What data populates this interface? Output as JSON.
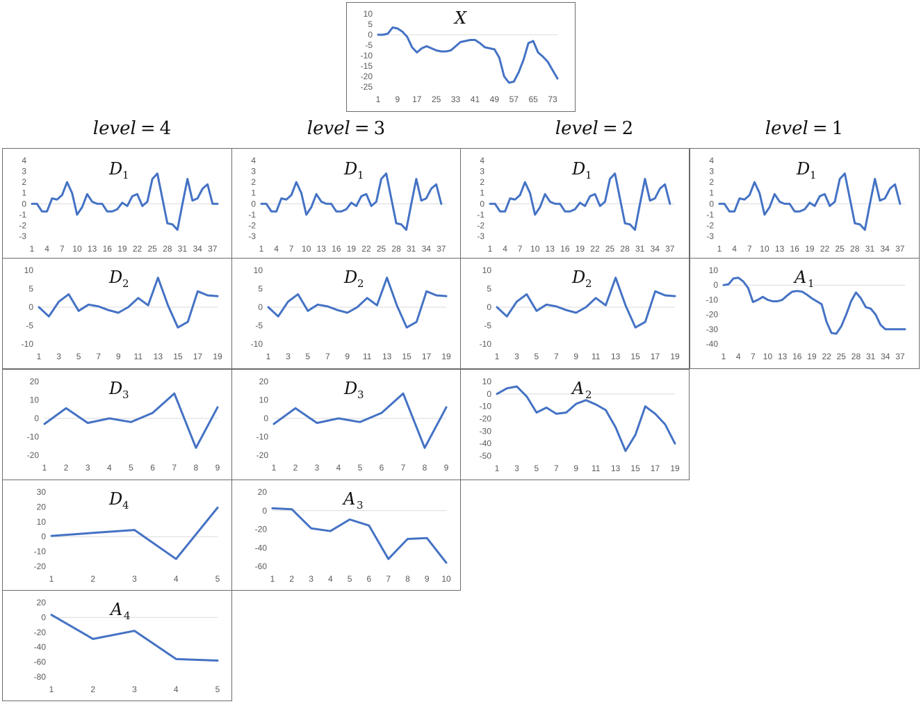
{
  "level_labels": [
    {
      "var": "level",
      "eq": "=",
      "num": "4"
    },
    {
      "var": "level",
      "eq": "=",
      "num": "3"
    },
    {
      "var": "level",
      "eq": "=",
      "num": "2"
    },
    {
      "var": "level",
      "eq": "=",
      "num": "1"
    }
  ],
  "colors": {
    "line": "#4472C4",
    "axis": "#D9D9D9",
    "tick": "#595959",
    "border": "#6b6b6b"
  },
  "chart_data": [
    {
      "id": "x",
      "type": "line",
      "title": "X",
      "subscript": "",
      "ylim": [
        -25,
        10
      ],
      "yticks": [
        10,
        5,
        0,
        -5,
        -10,
        -15,
        -20,
        -25
      ],
      "xticks": [
        1,
        9,
        17,
        25,
        33,
        41,
        49,
        57,
        65,
        73
      ],
      "xmax": 75,
      "x": [
        1,
        3,
        5,
        7,
        9,
        11,
        13,
        15,
        17,
        19,
        21,
        23,
        25,
        27,
        29,
        31,
        33,
        35,
        37,
        39,
        41,
        43,
        45,
        47,
        49,
        51,
        53,
        55,
        57,
        59,
        61,
        63,
        65,
        67,
        69,
        71,
        73,
        75
      ],
      "values": [
        0,
        0,
        0.5,
        3.5,
        3,
        1.5,
        -1,
        -6,
        -8.5,
        -6.5,
        -5.5,
        -6.5,
        -7.5,
        -8,
        -8,
        -7.5,
        -5.5,
        -3.5,
        -3,
        -2.5,
        -2.5,
        -4,
        -6,
        -6.5,
        -7,
        -11,
        -20,
        -23,
        -22.5,
        -18,
        -12,
        -4,
        -3,
        -8.5,
        -10.5,
        -13,
        -17,
        -21
      ]
    },
    {
      "id": "d1-l4",
      "type": "line",
      "title": "D",
      "subscript": "1",
      "ylim": [
        -3,
        4
      ],
      "yticks": [
        4,
        3,
        2,
        1,
        0,
        -1,
        -2,
        -3
      ],
      "xticks": [
        1,
        4,
        7,
        10,
        13,
        16,
        19,
        22,
        25,
        28,
        31,
        34,
        37
      ],
      "xmax": 38,
      "x": [
        1,
        2,
        3,
        4,
        5,
        6,
        7,
        8,
        9,
        10,
        11,
        12,
        13,
        14,
        15,
        16,
        17,
        18,
        19,
        20,
        21,
        22,
        23,
        24,
        25,
        26,
        27,
        28,
        29,
        30,
        31,
        32,
        33,
        34,
        35,
        36,
        37,
        38
      ],
      "values": [
        0,
        0,
        -0.7,
        -0.7,
        0.5,
        0.4,
        0.8,
        2,
        1,
        -1,
        -0.3,
        0.9,
        0.2,
        0,
        0,
        -0.7,
        -0.7,
        -0.5,
        0.1,
        -0.2,
        0.7,
        0.9,
        -0.2,
        0.2,
        2.3,
        2.8,
        0.5,
        -1.8,
        -1.9,
        -2.4,
        0,
        2.3,
        0.3,
        0.5,
        1.4,
        1.8,
        0,
        0
      ]
    },
    {
      "id": "d1-l3",
      "type": "line",
      "title": "D",
      "subscript": "1",
      "ylim": [
        -3,
        4
      ],
      "yticks": [
        4,
        3,
        2,
        1,
        0,
        -1,
        -2,
        -3
      ],
      "xticks": [
        1,
        4,
        7,
        10,
        13,
        16,
        19,
        22,
        25,
        28,
        31,
        34,
        37
      ],
      "xmax": 38,
      "x": [
        1,
        2,
        3,
        4,
        5,
        6,
        7,
        8,
        9,
        10,
        11,
        12,
        13,
        14,
        15,
        16,
        17,
        18,
        19,
        20,
        21,
        22,
        23,
        24,
        25,
        26,
        27,
        28,
        29,
        30,
        31,
        32,
        33,
        34,
        35,
        36,
        37
      ],
      "values": [
        0,
        0,
        -0.7,
        -0.7,
        0.5,
        0.4,
        0.8,
        2,
        1,
        -1,
        -0.3,
        0.9,
        0.2,
        0,
        0,
        -0.7,
        -0.7,
        -0.5,
        0.1,
        -0.2,
        0.7,
        0.9,
        -0.2,
        0.2,
        2.3,
        2.8,
        0.5,
        -1.8,
        -1.9,
        -2.4,
        0,
        2.3,
        0.3,
        0.5,
        1.4,
        1.8,
        0
      ]
    },
    {
      "id": "d1-l2",
      "type": "line",
      "title": "D",
      "subscript": "1",
      "ylim": [
        -3,
        4
      ],
      "yticks": [
        4,
        3,
        2,
        1,
        0,
        -1,
        -2,
        -3
      ],
      "xticks": [
        1,
        4,
        7,
        10,
        13,
        16,
        19,
        22,
        25,
        28,
        31,
        34,
        37
      ],
      "xmax": 38,
      "x": [
        1,
        2,
        3,
        4,
        5,
        6,
        7,
        8,
        9,
        10,
        11,
        12,
        13,
        14,
        15,
        16,
        17,
        18,
        19,
        20,
        21,
        22,
        23,
        24,
        25,
        26,
        27,
        28,
        29,
        30,
        31,
        32,
        33,
        34,
        35,
        36,
        37
      ],
      "values": [
        0,
        0,
        -0.7,
        -0.7,
        0.5,
        0.4,
        0.8,
        2,
        1,
        -1,
        -0.3,
        0.9,
        0.2,
        0,
        0,
        -0.7,
        -0.7,
        -0.5,
        0.1,
        -0.2,
        0.7,
        0.9,
        -0.2,
        0.2,
        2.3,
        2.8,
        0.5,
        -1.8,
        -1.9,
        -2.4,
        0,
        2.3,
        0.3,
        0.5,
        1.4,
        1.8,
        0
      ]
    },
    {
      "id": "d1-l1",
      "type": "line",
      "title": "D",
      "subscript": "1",
      "ylim": [
        -3,
        4
      ],
      "yticks": [
        4,
        3,
        2,
        1,
        0,
        -1,
        -2,
        -3
      ],
      "xticks": [
        1,
        4,
        7,
        10,
        13,
        16,
        19,
        22,
        25,
        28,
        31,
        34,
        37
      ],
      "xmax": 38,
      "x": [
        1,
        2,
        3,
        4,
        5,
        6,
        7,
        8,
        9,
        10,
        11,
        12,
        13,
        14,
        15,
        16,
        17,
        18,
        19,
        20,
        21,
        22,
        23,
        24,
        25,
        26,
        27,
        28,
        29,
        30,
        31,
        32,
        33,
        34,
        35,
        36,
        37
      ],
      "values": [
        0,
        0,
        -0.7,
        -0.7,
        0.5,
        0.4,
        0.8,
        2,
        1,
        -1,
        -0.3,
        0.9,
        0.2,
        0,
        0,
        -0.7,
        -0.7,
        -0.5,
        0.1,
        -0.2,
        0.7,
        0.9,
        -0.2,
        0.2,
        2.3,
        2.8,
        0.5,
        -1.8,
        -1.9,
        -2.4,
        0,
        2.3,
        0.3,
        0.5,
        1.4,
        1.8,
        0
      ]
    },
    {
      "id": "d2-l4",
      "type": "line",
      "title": "D",
      "subscript": "2",
      "ylim": [
        -10,
        10
      ],
      "yticks": [
        10,
        5,
        0,
        -5,
        -10
      ],
      "xticks": [
        1,
        3,
        5,
        7,
        9,
        11,
        13,
        15,
        17,
        19
      ],
      "xmax": 19,
      "x": [
        1,
        2,
        3,
        4,
        5,
        6,
        7,
        8,
        9,
        10,
        11,
        12,
        13,
        14,
        15,
        16,
        17,
        18,
        19
      ],
      "values": [
        0,
        -2.5,
        1.5,
        3.5,
        -1,
        0.7,
        0.2,
        -0.8,
        -1.5,
        0,
        2.5,
        0.5,
        8,
        0.5,
        -5.5,
        -4,
        4.3,
        3.2,
        3
      ]
    },
    {
      "id": "d2-l3",
      "type": "line",
      "title": "D",
      "subscript": "2",
      "ylim": [
        -10,
        10
      ],
      "yticks": [
        10,
        5,
        0,
        -5,
        -10
      ],
      "xticks": [
        1,
        3,
        5,
        7,
        9,
        11,
        13,
        15,
        17,
        19
      ],
      "xmax": 19,
      "x": [
        1,
        2,
        3,
        4,
        5,
        6,
        7,
        8,
        9,
        10,
        11,
        12,
        13,
        14,
        15,
        16,
        17,
        18,
        19
      ],
      "values": [
        0,
        -2.5,
        1.5,
        3.5,
        -1,
        0.7,
        0.2,
        -0.8,
        -1.5,
        0,
        2.5,
        0.5,
        8,
        0.5,
        -5.5,
        -4,
        4.3,
        3.2,
        3
      ]
    },
    {
      "id": "d2-l2",
      "type": "line",
      "title": "D",
      "subscript": "2",
      "ylim": [
        -10,
        10
      ],
      "yticks": [
        10,
        5,
        0,
        -5,
        -10
      ],
      "xticks": [
        1,
        3,
        5,
        7,
        9,
        11,
        13,
        15,
        17,
        19
      ],
      "xmax": 19,
      "x": [
        1,
        2,
        3,
        4,
        5,
        6,
        7,
        8,
        9,
        10,
        11,
        12,
        13,
        14,
        15,
        16,
        17,
        18,
        19
      ],
      "values": [
        0,
        -2.5,
        1.5,
        3.5,
        -1,
        0.7,
        0.2,
        -0.8,
        -1.5,
        0,
        2.5,
        0.5,
        8,
        0.5,
        -5.5,
        -4,
        4.3,
        3.2,
        3
      ]
    },
    {
      "id": "a1-l1",
      "type": "line",
      "title": "A",
      "subscript": "1",
      "ylim": [
        -40,
        10
      ],
      "yticks": [
        10,
        0,
        -10,
        -20,
        -30,
        -40
      ],
      "xticks": [
        1,
        4,
        7,
        10,
        13,
        16,
        19,
        22,
        25,
        28,
        31,
        34,
        37
      ],
      "xmax": 38,
      "x": [
        1,
        2,
        3,
        4,
        5,
        6,
        7,
        8,
        9,
        10,
        11,
        12,
        13,
        14,
        15,
        16,
        17,
        18,
        19,
        20,
        21,
        22,
        23,
        24,
        25,
        26,
        27,
        28,
        29,
        30,
        31,
        32,
        33,
        34,
        35,
        36,
        37,
        38
      ],
      "values": [
        0,
        0.5,
        4.5,
        5,
        2.5,
        -2,
        -11.5,
        -10,
        -8,
        -10,
        -11,
        -11,
        -10,
        -7,
        -4.5,
        -4,
        -4.5,
        -6.5,
        -9,
        -11,
        -13,
        -25,
        -32.5,
        -33,
        -28,
        -20,
        -11,
        -5,
        -9,
        -15,
        -16,
        -20,
        -27,
        -30,
        -30,
        -30,
        -30,
        -30
      ]
    },
    {
      "id": "d3-l4",
      "type": "line",
      "title": "D",
      "subscript": "3",
      "ylim": [
        -20,
        20
      ],
      "yticks": [
        20,
        10,
        0,
        -10,
        -20
      ],
      "xticks": [
        1,
        2,
        3,
        4,
        5,
        6,
        7,
        8,
        9
      ],
      "xmax": 9,
      "x": [
        1,
        2,
        3,
        4,
        5,
        6,
        7,
        8,
        9
      ],
      "values": [
        -3,
        5.5,
        -2.5,
        0,
        -2,
        3,
        13.5,
        -16,
        6
      ]
    },
    {
      "id": "d3-l3",
      "type": "line",
      "title": "D",
      "subscript": "3",
      "ylim": [
        -20,
        20
      ],
      "yticks": [
        20,
        10,
        0,
        -10,
        -20
      ],
      "xticks": [
        1,
        2,
        3,
        4,
        5,
        6,
        7,
        8,
        9
      ],
      "xmax": 9,
      "x": [
        1,
        2,
        3,
        4,
        5,
        6,
        7,
        8,
        9
      ],
      "values": [
        -3,
        5.5,
        -2.5,
        0,
        -2,
        3,
        13.5,
        -16,
        6
      ]
    },
    {
      "id": "a2-l2",
      "type": "line",
      "title": "A",
      "subscript": "2",
      "ylim": [
        -50,
        10
      ],
      "yticks": [
        10,
        0,
        -10,
        -20,
        -30,
        -40,
        -50
      ],
      "xticks": [
        1,
        3,
        5,
        7,
        9,
        11,
        13,
        15,
        17,
        19
      ],
      "xmax": 19,
      "x": [
        1,
        2,
        3,
        4,
        5,
        6,
        7,
        8,
        9,
        10,
        11,
        12,
        13,
        14,
        15,
        16,
        17,
        18,
        19
      ],
      "values": [
        0,
        4.5,
        6,
        -2,
        -15,
        -11,
        -16,
        -15,
        -8,
        -5,
        -8.5,
        -13,
        -27,
        -46,
        -33,
        -10,
        -16,
        -24.5,
        -40
      ]
    },
    {
      "id": "d4-l4",
      "type": "line",
      "title": "D",
      "subscript": "4",
      "ylim": [
        -20,
        30
      ],
      "yticks": [
        30,
        20,
        10,
        0,
        -10,
        -20
      ],
      "xticks": [
        1,
        2,
        3,
        4,
        5
      ],
      "xmax": 5,
      "x": [
        1,
        2,
        3,
        4,
        5
      ],
      "values": [
        0.5,
        2.5,
        4.5,
        -15,
        19.5
      ]
    },
    {
      "id": "a3-l3",
      "type": "line",
      "title": "A",
      "subscript": "3",
      "ylim": [
        -60,
        20
      ],
      "yticks": [
        20,
        0,
        -20,
        -40,
        -60
      ],
      "xticks": [
        1,
        2,
        3,
        4,
        5,
        6,
        7,
        8,
        9,
        10
      ],
      "xmax": 10,
      "x": [
        1,
        2,
        3,
        4,
        5,
        6,
        7,
        8,
        9,
        10
      ],
      "values": [
        2.5,
        1.5,
        -19,
        -22,
        -9.5,
        -16,
        -52,
        -30.5,
        -29.5,
        -56
      ]
    },
    {
      "id": "a4-l4",
      "type": "line",
      "title": "A",
      "subscript": "4",
      "ylim": [
        -80,
        20
      ],
      "yticks": [
        20,
        0,
        -20,
        -40,
        -60,
        -80
      ],
      "xticks": [
        1,
        2,
        3,
        4,
        5
      ],
      "xmax": 5,
      "x": [
        1,
        2,
        3,
        4,
        5
      ],
      "values": [
        3.5,
        -29,
        -18,
        -56,
        -58
      ]
    }
  ]
}
